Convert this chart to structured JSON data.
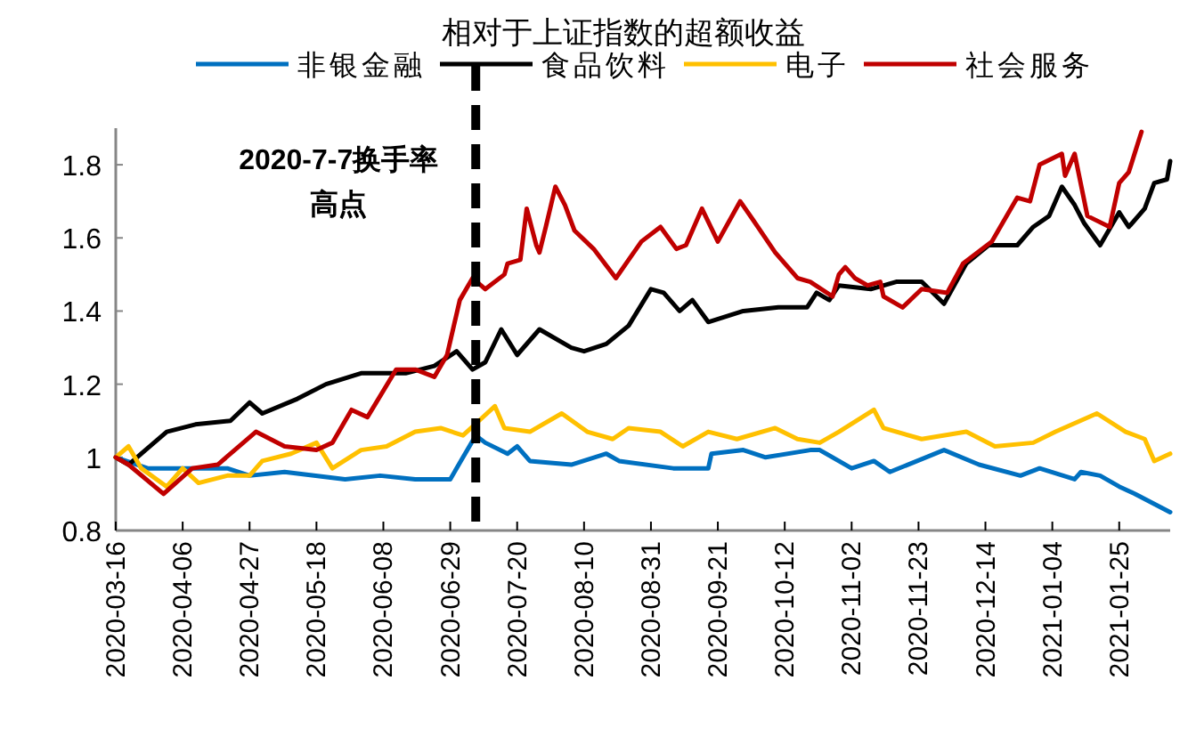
{
  "chart_data": {
    "type": "line",
    "title": "相对于上证指数的超额收益",
    "xlim": [
      "2020-03-16",
      "2021-02-10"
    ],
    "xticks": [
      {
        "value": "2020-03-16",
        "label": "2020-03-16"
      },
      {
        "value": "2020-04-06",
        "label": "2020-04-06"
      },
      {
        "value": "2020-04-27",
        "label": "2020-04-27"
      },
      {
        "value": "2020-05-18",
        "label": "2020-05-18"
      },
      {
        "value": "2020-06-08",
        "label": "2020-06-08"
      },
      {
        "value": "2020-06-29",
        "label": "2020-06-29"
      },
      {
        "value": "2020-07-20",
        "label": "2020-07-20"
      },
      {
        "value": "2020-08-10",
        "label": "2020-08-10"
      },
      {
        "value": "2020-08-31",
        "label": "2020-08-31"
      },
      {
        "value": "2020-09-21",
        "label": "2020-09-21"
      },
      {
        "value": "2020-10-12",
        "label": "2020-10-12"
      },
      {
        "value": "2020-11-02",
        "label": "2020-11-02"
      },
      {
        "value": "2020-11-23",
        "label": "2020-11-23"
      },
      {
        "value": "2020-12-14",
        "label": "2020-12-14"
      },
      {
        "value": "2021-01-04",
        "label": "2021-01-04"
      },
      {
        "value": "2021-01-25",
        "label": "2021-01-25"
      }
    ],
    "ylim": [
      0.8,
      1.9
    ],
    "yticks": [
      0.8,
      1,
      1.2,
      1.4,
      1.6,
      1.8
    ],
    "grid": false,
    "legend": "top",
    "line_style": "solid",
    "marker": "none",
    "ref_lines": [
      {
        "axis": "x",
        "value": "2020-07-07",
        "label": "2020-7-7换手率高点",
        "color": "#000000",
        "line_style": "dashed"
      }
    ],
    "series": [
      {
        "name": "非银金融",
        "color": "#0070c0",
        "x": [
          "2020-03-16",
          "2020-03-26",
          "2020-04-10",
          "2020-04-20",
          "2020-04-27",
          "2020-05-08",
          "2020-05-27",
          "2020-06-07",
          "2020-06-18",
          "2020-06-29",
          "2020-07-03",
          "2020-07-07",
          "2020-07-10",
          "2020-07-17",
          "2020-07-20",
          "2020-07-24",
          "2020-08-06",
          "2020-08-17",
          "2020-08-21",
          "2020-09-07",
          "2020-09-18",
          "2020-09-19",
          "2020-09-29",
          "2020-10-06",
          "2020-10-20",
          "2020-10-23",
          "2020-11-02",
          "2020-11-09",
          "2020-11-14",
          "2020-12-01",
          "2020-12-12",
          "2020-12-25",
          "2020-12-31",
          "2021-01-11",
          "2021-01-13",
          "2021-01-19",
          "2021-01-25",
          "2021-01-30",
          "2021-02-10"
        ],
        "values": [
          1.0,
          0.97,
          0.97,
          0.97,
          0.95,
          0.96,
          0.94,
          0.95,
          0.94,
          0.94,
          1.0,
          1.06,
          1.04,
          1.01,
          1.03,
          0.99,
          0.98,
          1.01,
          0.99,
          0.97,
          0.97,
          1.01,
          1.02,
          1.0,
          1.02,
          1.02,
          0.97,
          0.99,
          0.96,
          1.02,
          0.98,
          0.95,
          0.97,
          0.94,
          0.96,
          0.95,
          0.92,
          0.9,
          0.85
        ]
      },
      {
        "name": "食品饮料",
        "color": "#000000",
        "x": [
          "2020-03-16",
          "2020-03-20",
          "2020-04-01",
          "2020-04-10",
          "2020-04-21",
          "2020-04-27",
          "2020-05-01",
          "2020-05-12",
          "2020-05-21",
          "2020-06-01",
          "2020-06-15",
          "2020-06-24",
          "2020-07-01",
          "2020-07-06",
          "2020-07-10",
          "2020-07-15",
          "2020-07-20",
          "2020-07-27",
          "2020-08-06",
          "2020-08-10",
          "2020-08-17",
          "2020-08-24",
          "2020-08-31",
          "2020-09-04",
          "2020-09-09",
          "2020-09-13",
          "2020-09-18",
          "2020-09-29",
          "2020-10-10",
          "2020-10-19",
          "2020-10-22",
          "2020-10-26",
          "2020-10-29",
          "2020-11-08",
          "2020-11-16",
          "2020-11-24",
          "2020-12-01",
          "2020-12-08",
          "2020-12-15",
          "2020-12-24",
          "2020-12-29",
          "2021-01-03",
          "2021-01-07",
          "2021-01-11",
          "2021-01-14",
          "2021-01-19",
          "2021-01-25",
          "2021-01-28",
          "2021-02-02",
          "2021-02-05",
          "2021-02-09",
          "2021-02-10"
        ],
        "values": [
          1.0,
          0.98,
          1.07,
          1.09,
          1.1,
          1.15,
          1.12,
          1.16,
          1.2,
          1.23,
          1.23,
          1.25,
          1.29,
          1.24,
          1.26,
          1.35,
          1.28,
          1.35,
          1.3,
          1.29,
          1.31,
          1.36,
          1.46,
          1.45,
          1.4,
          1.43,
          1.37,
          1.4,
          1.41,
          1.41,
          1.45,
          1.43,
          1.47,
          1.46,
          1.48,
          1.48,
          1.42,
          1.53,
          1.58,
          1.58,
          1.63,
          1.66,
          1.74,
          1.69,
          1.64,
          1.58,
          1.67,
          1.63,
          1.68,
          1.75,
          1.76,
          1.81
        ]
      },
      {
        "name": "电子",
        "color": "#ffc000",
        "x": [
          "2020-03-16",
          "2020-03-20",
          "2020-03-24",
          "2020-04-01",
          "2020-04-06",
          "2020-04-11",
          "2020-04-20",
          "2020-04-27",
          "2020-05-01",
          "2020-05-10",
          "2020-05-18",
          "2020-05-23",
          "2020-06-01",
          "2020-06-09",
          "2020-06-18",
          "2020-06-26",
          "2020-07-03",
          "2020-07-08",
          "2020-07-13",
          "2020-07-16",
          "2020-07-24",
          "2020-08-03",
          "2020-08-11",
          "2020-08-19",
          "2020-08-24",
          "2020-09-03",
          "2020-09-10",
          "2020-09-18",
          "2020-09-27",
          "2020-10-09",
          "2020-10-16",
          "2020-10-23",
          "2020-10-29",
          "2020-11-09",
          "2020-11-12",
          "2020-11-24",
          "2020-12-08",
          "2020-12-17",
          "2020-12-29",
          "2021-01-05",
          "2021-01-18",
          "2021-01-27",
          "2021-02-02",
          "2021-02-05",
          "2021-02-10"
        ],
        "values": [
          1.0,
          1.03,
          0.97,
          0.92,
          0.97,
          0.93,
          0.95,
          0.95,
          0.99,
          1.01,
          1.04,
          0.97,
          1.02,
          1.03,
          1.07,
          1.08,
          1.06,
          1.1,
          1.14,
          1.08,
          1.07,
          1.12,
          1.07,
          1.05,
          1.08,
          1.07,
          1.03,
          1.07,
          1.05,
          1.08,
          1.05,
          1.04,
          1.07,
          1.13,
          1.08,
          1.05,
          1.07,
          1.03,
          1.04,
          1.07,
          1.12,
          1.07,
          1.05,
          0.99,
          1.01
        ]
      },
      {
        "name": "社会服务",
        "color": "#c00000",
        "x": [
          "2020-03-16",
          "2020-03-20",
          "2020-03-31",
          "2020-04-09",
          "2020-04-17",
          "2020-04-29",
          "2020-05-08",
          "2020-05-18",
          "2020-05-23",
          "2020-05-29",
          "2020-06-03",
          "2020-06-12",
          "2020-06-18",
          "2020-06-24",
          "2020-06-28",
          "2020-07-02",
          "2020-07-06",
          "2020-07-10",
          "2020-07-16",
          "2020-07-17",
          "2020-07-21",
          "2020-07-23",
          "2020-07-26",
          "2020-07-27",
          "2020-07-29",
          "2020-08-01",
          "2020-08-04",
          "2020-08-07",
          "2020-08-13",
          "2020-08-20",
          "2020-08-24",
          "2020-08-28",
          "2020-09-03",
          "2020-09-08",
          "2020-09-11",
          "2020-09-16",
          "2020-09-21",
          "2020-09-28",
          "2020-10-02",
          "2020-10-09",
          "2020-10-16",
          "2020-10-20",
          "2020-10-27",
          "2020-10-29",
          "2020-10-31",
          "2020-11-03",
          "2020-11-07",
          "2020-11-11",
          "2020-11-12",
          "2020-11-18",
          "2020-11-24",
          "2020-12-02",
          "2020-12-07",
          "2020-12-16",
          "2020-12-24",
          "2020-12-28",
          "2020-12-31",
          "2021-01-07",
          "2021-01-08",
          "2021-01-11",
          "2021-01-15",
          "2021-01-22",
          "2021-01-25",
          "2021-01-28",
          "2021-02-01"
        ],
        "values": [
          1.0,
          0.98,
          0.9,
          0.97,
          0.98,
          1.07,
          1.03,
          1.02,
          1.04,
          1.13,
          1.11,
          1.24,
          1.24,
          1.22,
          1.28,
          1.43,
          1.49,
          1.46,
          1.5,
          1.53,
          1.54,
          1.68,
          1.58,
          1.56,
          1.63,
          1.74,
          1.69,
          1.62,
          1.57,
          1.49,
          1.54,
          1.59,
          1.63,
          1.57,
          1.58,
          1.68,
          1.59,
          1.7,
          1.65,
          1.56,
          1.49,
          1.48,
          1.44,
          1.5,
          1.52,
          1.49,
          1.47,
          1.48,
          1.44,
          1.41,
          1.46,
          1.45,
          1.53,
          1.59,
          1.71,
          1.7,
          1.8,
          1.83,
          1.77,
          1.83,
          1.66,
          1.63,
          1.75,
          1.78,
          1.89
        ]
      }
    ]
  }
}
